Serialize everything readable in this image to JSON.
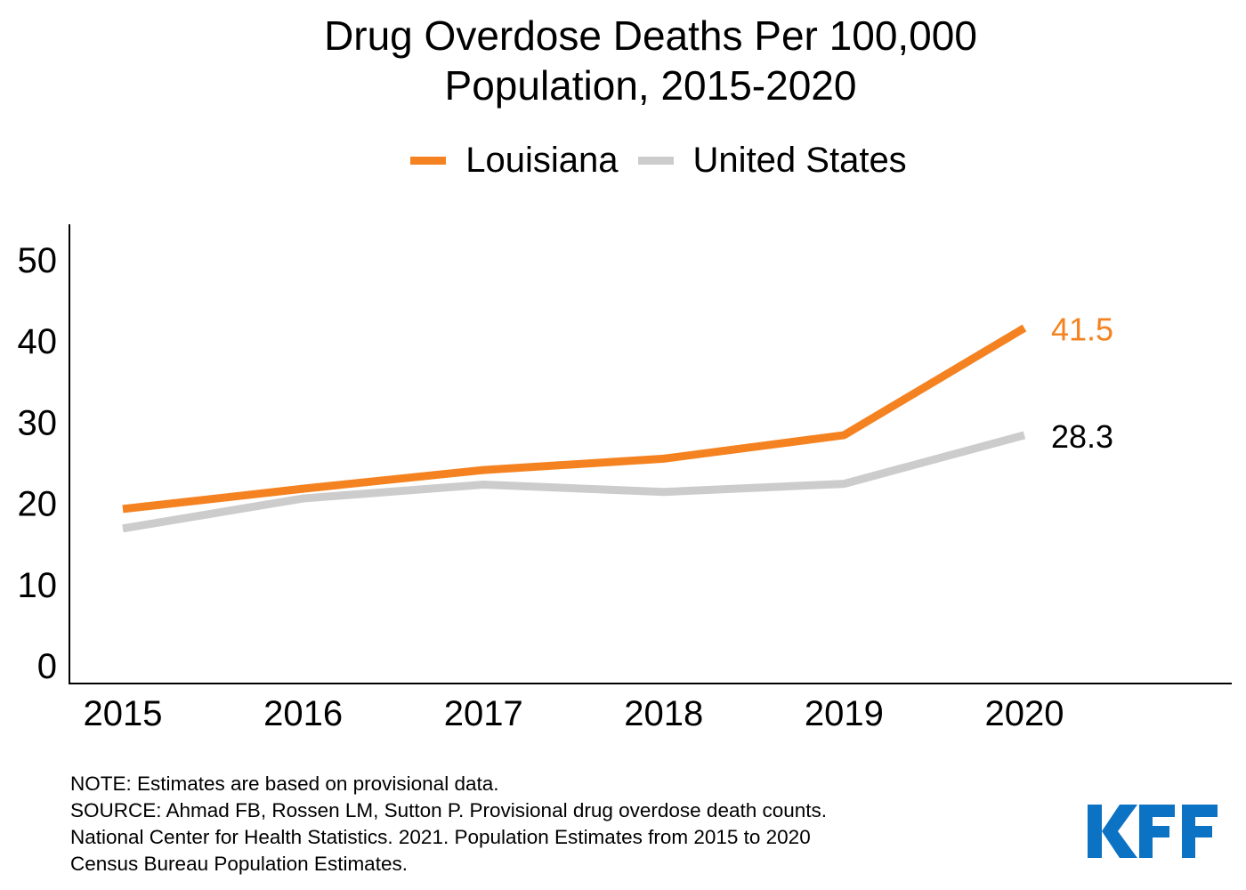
{
  "chart_data": {
    "type": "line",
    "title": "Drug Overdose Deaths Per 100,000 Population, 2015-2020",
    "title_lines": [
      "Drug Overdose Deaths Per 100,000",
      "Population, 2015-2020"
    ],
    "xlabel": "",
    "ylabel": "",
    "x": [
      "2015",
      "2016",
      "2017",
      "2018",
      "2019",
      "2020"
    ],
    "ylim": [
      0,
      50
    ],
    "yticks": [
      0,
      10,
      20,
      30,
      40,
      50
    ],
    "grid": false,
    "legend_position": "top-center",
    "series": [
      {
        "name": "Louisiana",
        "color": "#F58220",
        "values": [
          19.2,
          21.7,
          24.0,
          25.4,
          28.3,
          41.5
        ],
        "end_label": "41.5",
        "end_label_color": "#F58220"
      },
      {
        "name": "United States",
        "color": "#CCCCCC",
        "values": [
          16.8,
          20.5,
          22.2,
          21.3,
          22.3,
          28.3
        ],
        "end_label": "28.3",
        "end_label_color": "#000000"
      }
    ]
  },
  "notes": {
    "note": "NOTE: Estimates are based on provisional data.",
    "source_lines": [
      "SOURCE: Ahmad FB, Rossen LM, Sutton P. Provisional drug overdose death counts.",
      "National Center for Health Statistics. 2021. Population Estimates from 2015 to 2020",
      "Census Bureau Population Estimates."
    ]
  },
  "logo": {
    "text": "KFF",
    "color": "#0B72C4"
  }
}
